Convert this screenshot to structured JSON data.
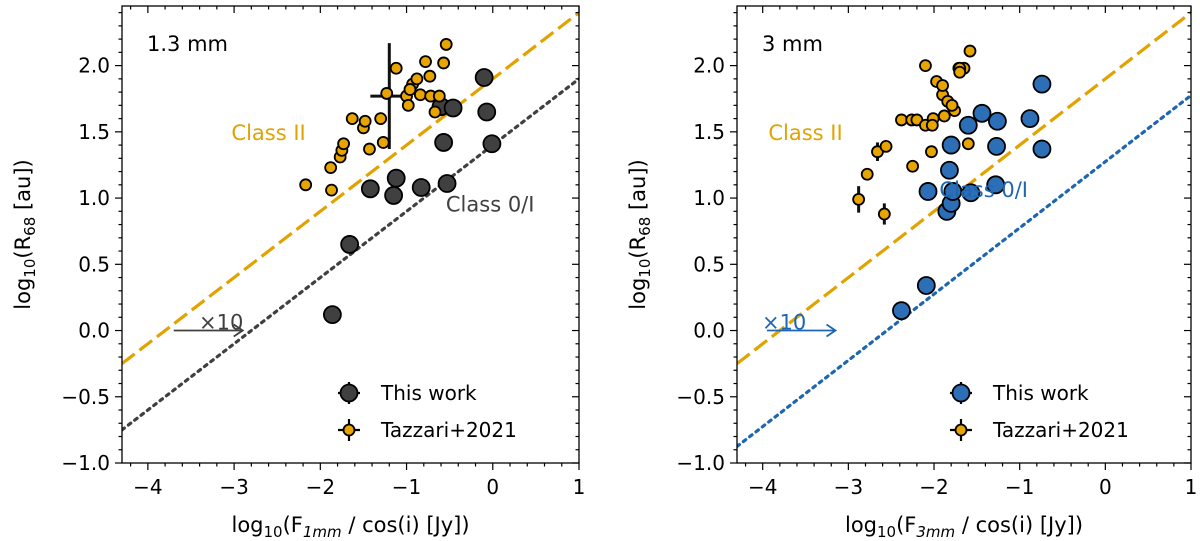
{
  "colors": {
    "class2": "#e2a300",
    "class0_13mm": "#404040",
    "class0_3mm": "#1f66b0",
    "tazzari_fill": "#e8a400",
    "this_work_13mm_fill": "#404040",
    "this_work_3mm_fill": "#2c6fb7"
  },
  "chart_data": [
    {
      "type": "scatter",
      "panel_label": "1.3 mm",
      "xlabel": "log10(F1mm / cos(i) [Jy])",
      "xlabel_parts": {
        "pre": "log",
        "sub1": "10",
        "mid": "(F",
        "sub2": "1mm",
        "post": " / cos(i) [Jy])"
      },
      "ylabel": "log10(R68 [au])",
      "ylabel_parts": {
        "pre": "log",
        "sub1": "10",
        "mid": "(R",
        "sub2": "68",
        "post": " [au])"
      },
      "xlim": [
        -4.3,
        1.0
      ],
      "ylim": [
        -1.0,
        2.45
      ],
      "xticks": [
        -4,
        -3,
        -2,
        -1,
        0,
        1
      ],
      "xtick_labels": [
        "−4",
        "−3",
        "−2",
        "−1",
        "0",
        "1"
      ],
      "yticks": [
        -1.0,
        -0.5,
        0.0,
        0.5,
        1.0,
        1.5,
        2.0
      ],
      "ytick_labels": [
        "−1.0",
        "−0.5",
        "0.0",
        "0.5",
        "1.0",
        "1.5",
        "2.0"
      ],
      "grid": false,
      "legend_position": "lower-right",
      "series": [
        {
          "name": "This work",
          "style": "large-circle",
          "color_key": "this_work_13mm_fill",
          "points": [
            [
              -1.86,
              0.12
            ],
            [
              -1.66,
              0.65
            ],
            [
              -1.42,
              1.07
            ],
            [
              -1.15,
              1.02
            ],
            [
              -1.12,
              1.15
            ],
            [
              -0.83,
              1.08
            ],
            [
              -0.57,
              1.42
            ],
            [
              -0.53,
              1.11
            ],
            [
              -0.6,
              1.69
            ],
            [
              -0.46,
              1.68
            ],
            [
              -0.1,
              1.91
            ],
            [
              -0.07,
              1.65
            ],
            [
              -0.01,
              1.41
            ]
          ]
        },
        {
          "name": "Tazzari+2021",
          "style": "small-circle",
          "color_key": "tazzari_fill",
          "points": [
            [
              -2.17,
              1.1
            ],
            [
              -1.87,
              1.06
            ],
            [
              -1.88,
              1.23
            ],
            [
              -1.77,
              1.31
            ],
            [
              -1.75,
              1.36
            ],
            [
              -1.73,
              1.41
            ],
            [
              -1.63,
              1.6
            ],
            [
              -1.5,
              1.53
            ],
            [
              -1.48,
              1.58
            ],
            [
              -1.43,
              1.37
            ],
            [
              -1.3,
              1.6
            ],
            [
              -1.23,
              1.79
            ],
            [
              -1.27,
              1.42
            ],
            [
              -1.12,
              1.98
            ],
            [
              -1.0,
              1.77
            ],
            [
              -0.98,
              1.7
            ],
            [
              -0.93,
              1.86
            ],
            [
              -0.96,
              1.82
            ],
            [
              -0.88,
              1.9
            ],
            [
              -0.84,
              1.78
            ],
            [
              -0.78,
              2.03
            ],
            [
              -0.72,
              1.77
            ],
            [
              -0.73,
              1.92
            ],
            [
              -0.67,
              1.65
            ],
            [
              -0.62,
              1.77
            ],
            [
              -0.54,
              2.16
            ],
            [
              -0.57,
              2.02
            ]
          ]
        }
      ],
      "error_bars": [
        {
          "x": -1.2,
          "y": 1.77,
          "xerr": 0.22,
          "yerr_low": 0.4,
          "yerr_high": 0.4
        }
      ],
      "relations": [
        {
          "name": "Class II",
          "style": "dashed",
          "color_key": "class2",
          "x_at_y0": -3.8,
          "slope": 0.5
        },
        {
          "name": "Class 0/I",
          "style": "dotted",
          "color_key": "class0_13mm",
          "x_at_y0": -2.8,
          "slope": 0.5
        }
      ],
      "annotations": [
        {
          "text": "Class II",
          "x": -2.6,
          "y": 1.5,
          "color_key": "class2"
        },
        {
          "text": "Class 0/I",
          "x": -0.03,
          "y": 0.96,
          "color_key": "class0_13mm"
        },
        {
          "text": "×10",
          "x": -3.15,
          "y": 0.07,
          "color_key": "class0_13mm"
        }
      ],
      "arrow": {
        "from": [
          -3.7,
          0.0
        ],
        "to": [
          -2.9,
          0.0
        ],
        "color_key": "class0_13mm"
      },
      "legend": [
        "This work",
        "Tazzari+2021"
      ]
    },
    {
      "type": "scatter",
      "panel_label": "3 mm",
      "xlabel": "log10(F3mm / cos(i) [Jy])",
      "xlabel_parts": {
        "pre": "log",
        "sub1": "10",
        "mid": "(F",
        "sub2": "3mm",
        "post": " / cos(i) [Jy])"
      },
      "ylabel": "log10(R68 [au])",
      "ylabel_parts": {
        "pre": "log",
        "sub1": "10",
        "mid": "(R",
        "sub2": "68",
        "post": " [au])"
      },
      "xlim": [
        -4.3,
        1.0
      ],
      "ylim": [
        -1.0,
        2.45
      ],
      "xticks": [
        -4,
        -3,
        -2,
        -1,
        0,
        1
      ],
      "xtick_labels": [
        "−4",
        "−3",
        "−2",
        "−1",
        "0",
        "1"
      ],
      "yticks": [
        -1.0,
        -0.5,
        0.0,
        0.5,
        1.0,
        1.5,
        2.0
      ],
      "ytick_labels": [
        "−1.0",
        "−0.5",
        "0.0",
        "0.5",
        "1.0",
        "1.5",
        "2.0"
      ],
      "grid": false,
      "legend_position": "lower-right",
      "series": [
        {
          "name": "This work",
          "style": "large-circle",
          "color_key": "this_work_3mm_fill",
          "points": [
            [
              -2.38,
              0.15
            ],
            [
              -2.09,
              0.34
            ],
            [
              -2.07,
              1.05
            ],
            [
              -1.85,
              0.9
            ],
            [
              -1.8,
              0.96
            ],
            [
              -1.82,
              1.21
            ],
            [
              -1.8,
              1.4
            ],
            [
              -1.78,
              1.05
            ],
            [
              -1.57,
              1.04
            ],
            [
              -1.6,
              1.55
            ],
            [
              -1.44,
              1.64
            ],
            [
              -1.26,
              1.58
            ],
            [
              -1.27,
              1.39
            ],
            [
              -1.28,
              1.1
            ],
            [
              -0.88,
              1.6
            ],
            [
              -0.74,
              1.86
            ],
            [
              -0.74,
              1.37
            ]
          ]
        },
        {
          "name": "Tazzari+2021",
          "style": "small-circle",
          "color_key": "tazzari_fill",
          "points": [
            [
              -2.88,
              0.99
            ],
            [
              -2.58,
              0.88
            ],
            [
              -2.66,
              1.35
            ],
            [
              -2.78,
              1.18
            ],
            [
              -2.56,
              1.39
            ],
            [
              -2.38,
              1.59
            ],
            [
              -2.26,
              1.59
            ],
            [
              -2.2,
              1.59
            ],
            [
              -2.25,
              1.24
            ],
            [
              -2.1,
              1.55
            ],
            [
              -2.03,
              1.35
            ],
            [
              -2.01,
              1.6
            ],
            [
              -1.97,
              1.88
            ],
            [
              -1.9,
              1.78
            ],
            [
              -1.84,
              1.73
            ],
            [
              -1.76,
              1.66
            ],
            [
              -1.71,
              1.98
            ],
            [
              -1.65,
              1.98
            ],
            [
              -1.7,
              1.98
            ],
            [
              -1.79,
              1.7
            ],
            [
              -1.58,
              2.11
            ],
            [
              -2.1,
              2.0
            ],
            [
              -1.9,
              1.85
            ],
            [
              -1.7,
              1.95
            ],
            [
              -1.6,
              1.41
            ],
            [
              -1.88,
              1.62
            ],
            [
              -2.02,
              1.55
            ]
          ]
        }
      ],
      "error_bars": [
        {
          "x": -2.88,
          "y": 0.99,
          "xerr": 0.0,
          "yerr_low": 0.1,
          "yerr_high": 0.1
        },
        {
          "x": -2.58,
          "y": 0.88,
          "xerr": 0.0,
          "yerr_low": 0.08,
          "yerr_high": 0.08
        },
        {
          "x": -2.66,
          "y": 1.35,
          "xerr": 0.0,
          "yerr_low": 0.07,
          "yerr_high": 0.07
        }
      ],
      "relations": [
        {
          "name": "Class II",
          "style": "dashed",
          "color_key": "class2",
          "x_at_y0": -3.8,
          "slope": 0.5
        },
        {
          "name": "Class 0/I",
          "style": "dotted",
          "color_key": "class0_3mm",
          "x_at_y0": -2.55,
          "slope": 0.5
        }
      ],
      "annotations": [
        {
          "text": "Class II",
          "x": -3.5,
          "y": 1.5,
          "color_key": "class2"
        },
        {
          "text": "Class 0/I",
          "x": -1.42,
          "y": 1.07,
          "color_key": "class0_3mm"
        },
        {
          "text": "×10",
          "x": -3.75,
          "y": 0.07,
          "color_key": "class0_3mm"
        }
      ],
      "arrow": {
        "from": [
          -3.95,
          0.0
        ],
        "to": [
          -3.15,
          0.0
        ],
        "color_key": "class0_3mm"
      },
      "legend": [
        "This work",
        "Tazzari+2021"
      ]
    }
  ]
}
